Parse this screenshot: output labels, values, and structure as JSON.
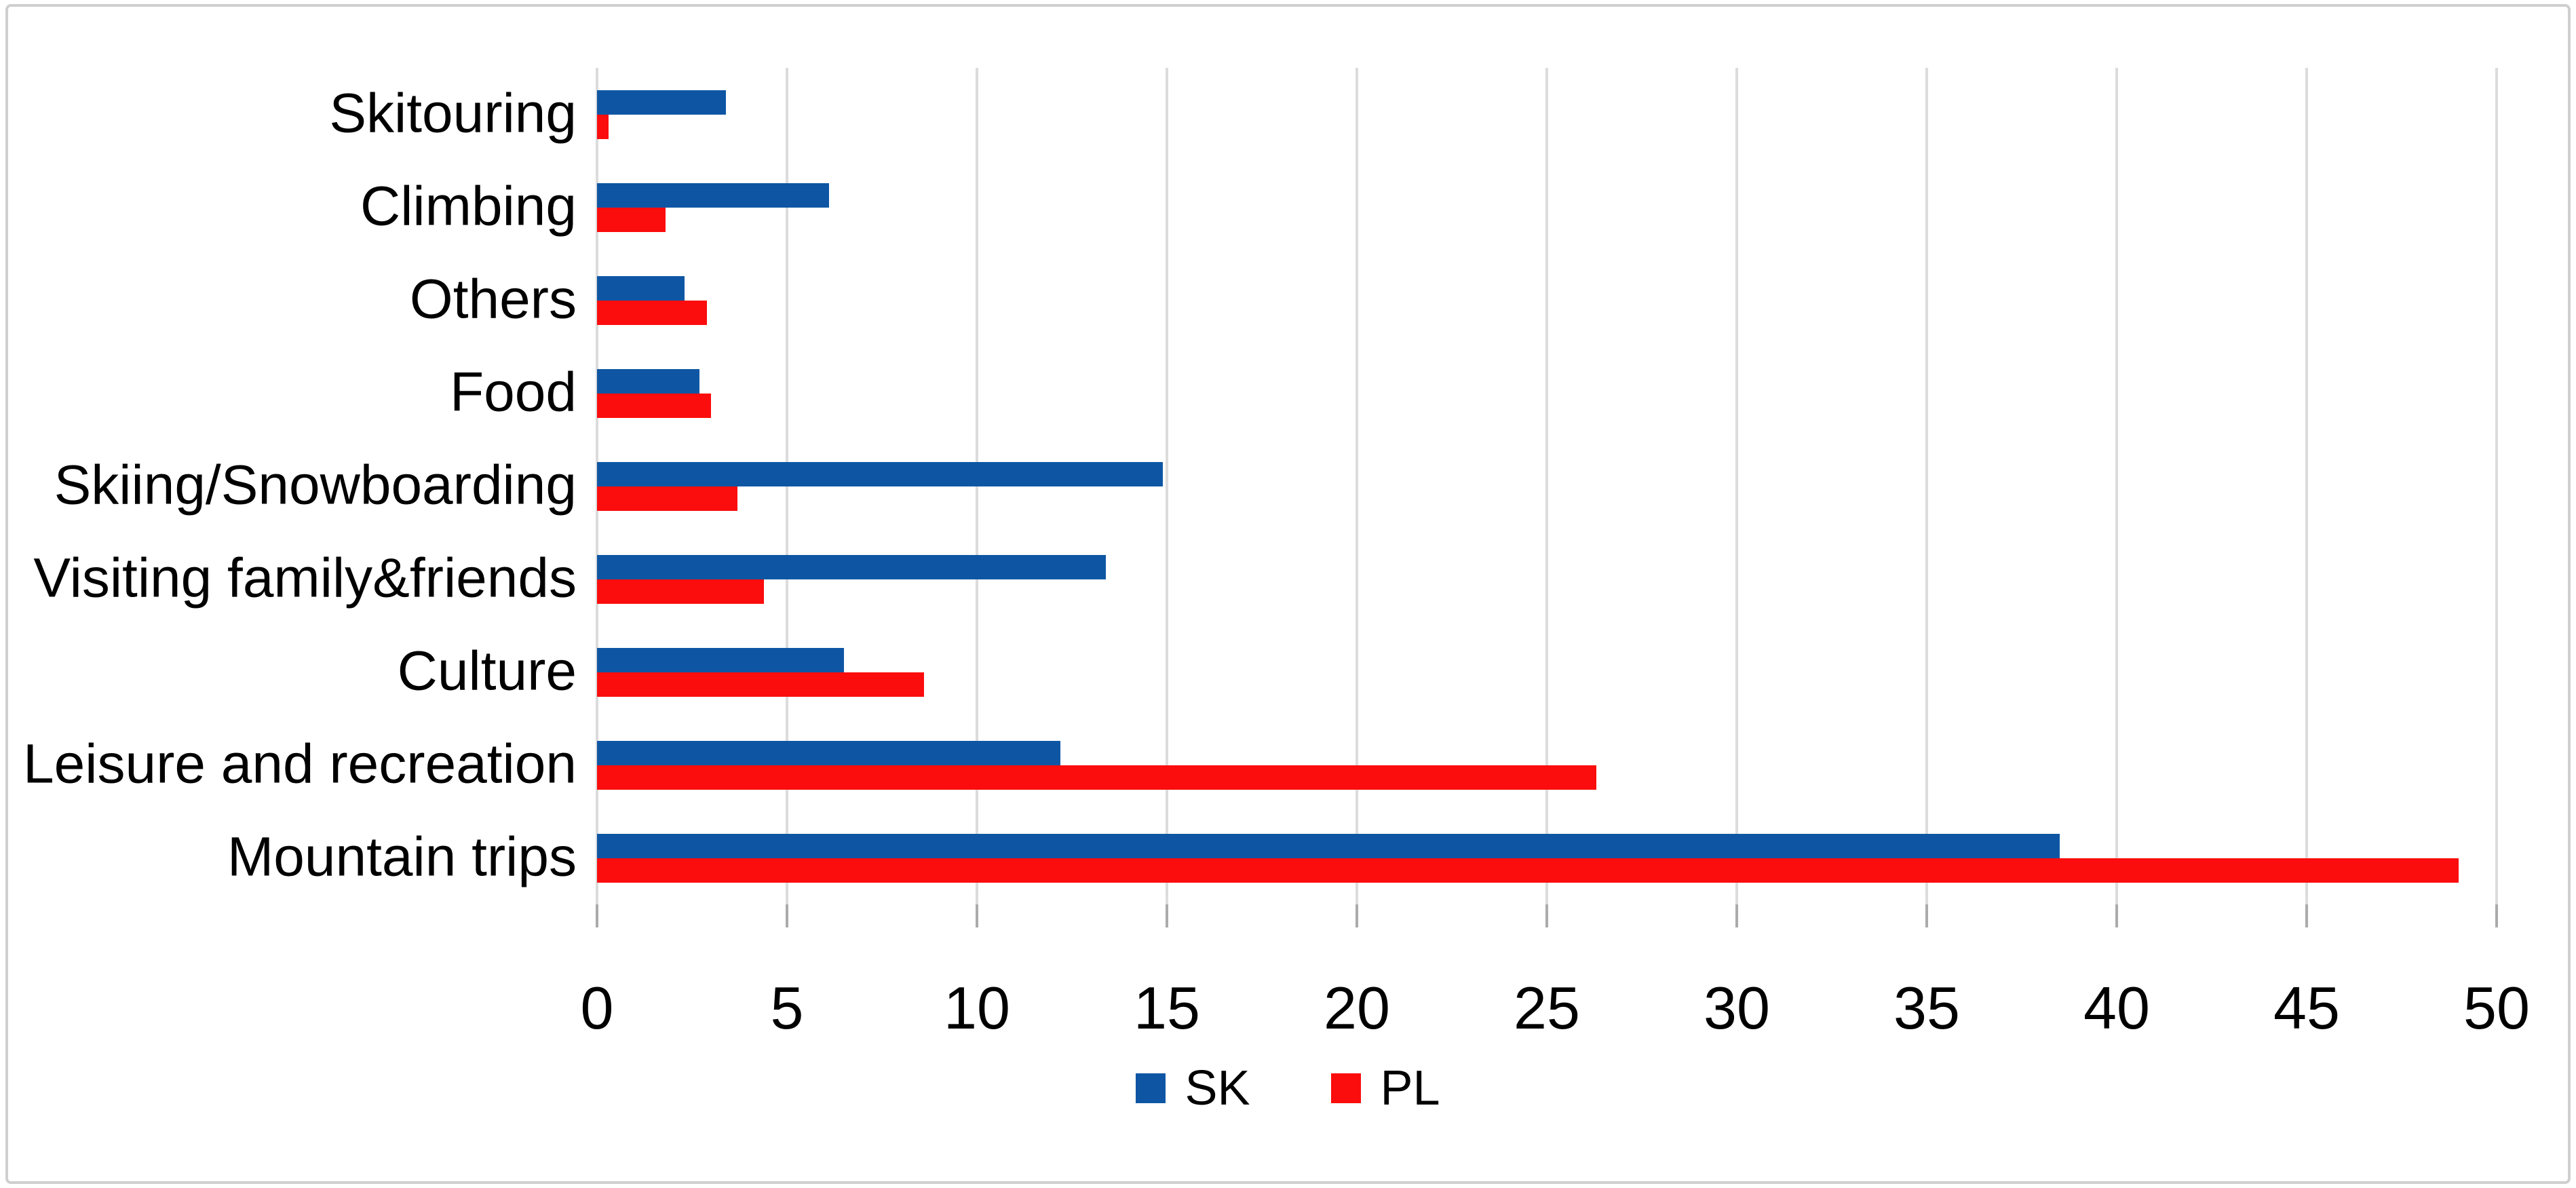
{
  "chart_data": {
    "type": "bar",
    "orientation": "horizontal",
    "title": "",
    "categories": [
      "Skitouring",
      "Climbing",
      "Others",
      "Food",
      "Skiing/Snowboarding",
      "Visiting family&friends",
      "Culture",
      "Leisure and recreation",
      "Mountain trips"
    ],
    "series": [
      {
        "name": "SK",
        "color": "#0e56a4",
        "values": [
          3.4,
          6.1,
          2.3,
          2.7,
          14.9,
          13.4,
          6.5,
          12.2,
          38.5
        ]
      },
      {
        "name": "PL",
        "color": "#fb0d0d",
        "values": [
          0.3,
          1.8,
          2.9,
          3.0,
          3.7,
          4.4,
          8.6,
          26.3,
          49.0
        ]
      }
    ],
    "xlim": [
      0,
      50
    ],
    "xticks": [
      0,
      5,
      10,
      15,
      20,
      25,
      30,
      35,
      40,
      45,
      50
    ],
    "grid": "vertical-only",
    "legend_position": "bottom-center",
    "xlabel": "",
    "ylabel": ""
  },
  "styles": {
    "background": "#ffffff",
    "gridline_color": "#dcdcdc",
    "tick_color": "#ababab",
    "frame_border_color": "#cfcfcf",
    "text_color": "#000000"
  }
}
